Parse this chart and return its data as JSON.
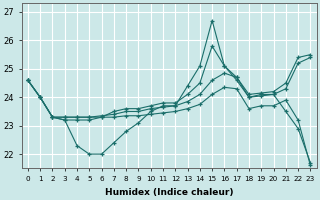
{
  "xlabel": "Humidex (Indice chaleur)",
  "background_color": "#cce8e8",
  "grid_color": "#ffffff",
  "line_color": "#1a6e6a",
  "xlim": [
    -0.5,
    23.5
  ],
  "ylim": [
    21.5,
    27.3
  ],
  "yticks": [
    22,
    23,
    24,
    25,
    26,
    27
  ],
  "xticks": [
    0,
    1,
    2,
    3,
    4,
    5,
    6,
    7,
    8,
    9,
    10,
    11,
    12,
    13,
    14,
    15,
    16,
    17,
    18,
    19,
    20,
    21,
    22,
    23
  ],
  "series": [
    [
      24.6,
      24.0,
      23.3,
      23.2,
      22.3,
      22.0,
      22.0,
      22.4,
      22.8,
      23.1,
      23.5,
      23.7,
      23.7,
      24.4,
      25.1,
      26.7,
      25.1,
      24.6,
      24.0,
      24.1,
      24.1,
      23.5,
      22.9,
      21.7
    ],
    [
      24.6,
      24.0,
      23.3,
      23.2,
      23.2,
      23.2,
      23.3,
      23.5,
      23.6,
      23.6,
      23.7,
      23.8,
      23.8,
      24.1,
      24.5,
      25.8,
      25.1,
      24.7,
      24.1,
      24.15,
      24.2,
      24.5,
      25.4,
      25.5
    ],
    [
      24.6,
      24.0,
      23.3,
      23.3,
      23.3,
      23.3,
      23.35,
      23.4,
      23.5,
      23.5,
      23.6,
      23.65,
      23.7,
      23.85,
      24.1,
      24.6,
      24.85,
      24.7,
      24.0,
      24.05,
      24.1,
      24.3,
      25.2,
      25.4
    ],
    [
      24.6,
      24.0,
      23.3,
      23.3,
      23.3,
      23.3,
      23.3,
      23.3,
      23.35,
      23.35,
      23.4,
      23.45,
      23.5,
      23.6,
      23.75,
      24.1,
      24.35,
      24.3,
      23.6,
      23.7,
      23.7,
      23.9,
      23.2,
      21.6
    ]
  ]
}
